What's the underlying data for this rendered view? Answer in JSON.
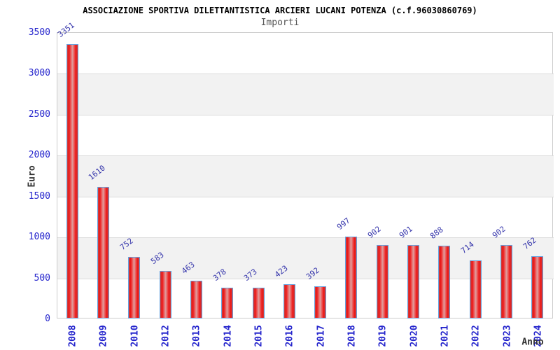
{
  "chart_data": {
    "type": "bar",
    "title": "ASSOCIAZIONE SPORTIVA DILETTANTISTICA ARCIERI LUCANI POTENZA (c.f.96030860769)",
    "subtitle": "Importi",
    "xlabel": "Anno",
    "ylabel": "Euro",
    "categories": [
      "2008",
      "2009",
      "2010",
      "2012",
      "2013",
      "2014",
      "2015",
      "2016",
      "2017",
      "2018",
      "2019",
      "2020",
      "2021",
      "2022",
      "2023",
      "2024"
    ],
    "values": [
      3351,
      1610,
      752,
      583,
      463,
      378,
      373,
      423,
      392,
      997,
      902,
      901,
      888,
      714,
      902,
      762
    ],
    "ylim": [
      0,
      3500
    ],
    "yticks": [
      0,
      500,
      1000,
      1500,
      2000,
      2500,
      3000,
      3500
    ],
    "grid": "horizontal-with-alternating-bands",
    "legend": "none",
    "bar_labels_rotated_deg": -38,
    "x_labels_rotated_deg": -90,
    "colors": {
      "bar_fill_edge": "#ee1515",
      "bar_fill_center": "#dfa0a0",
      "bar_border": "#66a3e0",
      "axis_tick_text": "#2323cc",
      "value_label_text": "#3333aa",
      "band_fill": "#f2f2f2",
      "grid_line": "#dcdcdc",
      "plot_frame": "#cccccc",
      "title_text": "#000000",
      "subtitle_text": "#555555",
      "axis_title_text": "#333333"
    }
  }
}
